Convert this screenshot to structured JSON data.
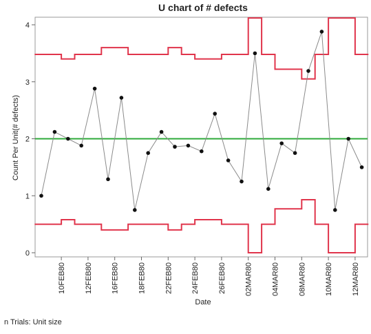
{
  "chart_data": {
    "type": "line",
    "title": "U chart of # defects",
    "xlabel": "Date",
    "ylabel": "Count Per Unit(# defects)",
    "ylim": [
      0,
      4.2
    ],
    "y_ticks": [
      0,
      1,
      2,
      3,
      4
    ],
    "x_tick_labels": [
      "10FEB80",
      "12FEB80",
      "16FEB80",
      "18FEB80",
      "22FEB80",
      "24FEB80",
      "26FEB80",
      "02MAR80",
      "04MAR80",
      "08MAR80",
      "10MAR80",
      "12MAR80"
    ],
    "values": [
      1.0,
      2.12,
      2.0,
      1.88,
      2.88,
      1.29,
      2.72,
      0.75,
      1.75,
      2.12,
      1.86,
      1.88,
      1.78,
      2.44,
      1.62,
      1.25,
      3.5,
      1.12,
      1.92,
      1.75,
      3.19,
      3.88,
      0.75,
      2.0,
      1.5
    ],
    "center_line": 2.0,
    "ucl": [
      3.48,
      3.48,
      3.4,
      3.48,
      3.48,
      3.6,
      3.6,
      3.48,
      3.48,
      3.48,
      3.6,
      3.48,
      3.4,
      3.4,
      3.48,
      3.48,
      4.12,
      3.48,
      3.22,
      3.22,
      3.05,
      3.48,
      4.12,
      4.12,
      3.48
    ],
    "lcl": [
      0.5,
      0.5,
      0.58,
      0.5,
      0.5,
      0.4,
      0.4,
      0.5,
      0.5,
      0.5,
      0.4,
      0.5,
      0.58,
      0.58,
      0.5,
      0.5,
      0.0,
      0.5,
      0.77,
      0.77,
      0.93,
      0.5,
      0.0,
      0.0,
      0.5
    ],
    "colors": {
      "limits": "#e0344b",
      "center": "#2eaa3a",
      "series": "#8a8a8a",
      "points": "#111111"
    },
    "grid": false,
    "footnote": "n Trials: Unit size"
  }
}
